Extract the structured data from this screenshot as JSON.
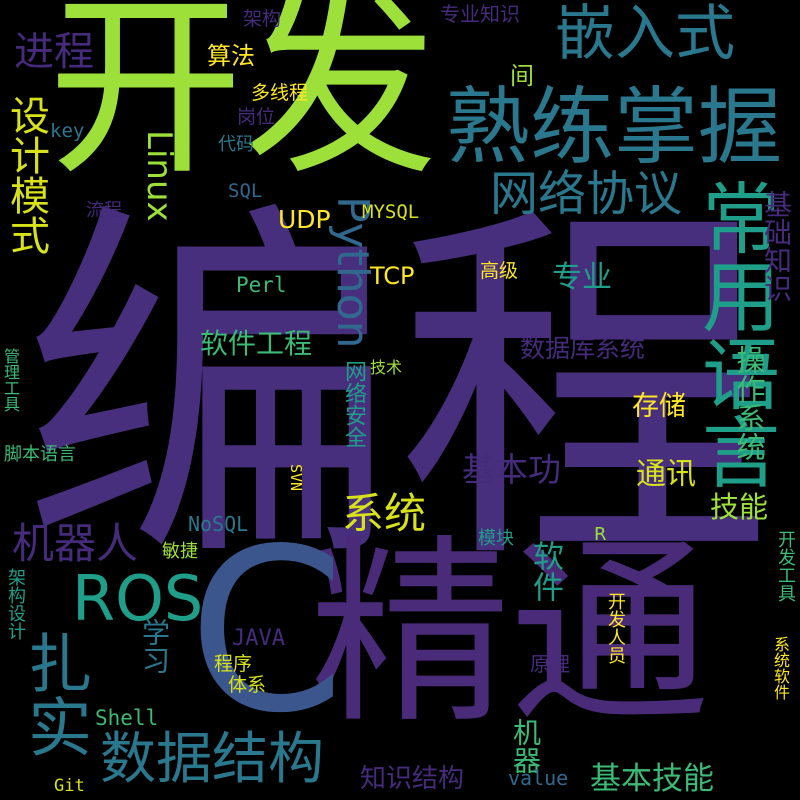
{
  "colors": {
    "background": "#000000",
    "palette": [
      "#4a2b7a",
      "#472f7d",
      "#3a568c",
      "#2a788e",
      "#1f9e89",
      "#3bbb75",
      "#74d055",
      "#9ee03a",
      "#d8e219",
      "#fde725",
      "#462b7c",
      "#31688e"
    ]
  },
  "words": {
    "biancheng": "编程",
    "kaifa": "开发",
    "jingtong": "精通",
    "c": "C",
    "shulianzhangwo": "熟练掌握",
    "qianrushi": "嵌入式",
    "changyongyuyan": "常用语言",
    "wangluoxieyi": "网络协议",
    "shujujiegou": "数据结构",
    "ros": "ROS",
    "zhashi": "扎实",
    "shejimoshi": "设计模式",
    "jinhceng": "进程",
    "python": "Python",
    "linux": "Linux",
    "xitong": "系统",
    "jiqiren": "机器人",
    "ruanjiangongcheng": "软件工程",
    "shujukuxitong": "数据库系统",
    "jibengong": "基本功",
    "jibenjineng": "基本技能",
    "jichuzhishi": "基础知识",
    "caozuoxitong": "操作系统",
    "jineng": "技能",
    "tongxun": "通讯",
    "cunchu": "存储",
    "ruanjian": "软件",
    "jiqi": "机器",
    "xuexi": "学习",
    "zhishijiegou": "知识结构",
    "suanfa": "算法",
    "jian": "间",
    "zhuanyezhishi": "专业知识",
    "jiagou": "架构",
    "duoxiancheng": "多线程",
    "gangwei": "岗位",
    "daima": "代码",
    "sql": "SQL",
    "mysql": "MYSQL",
    "udp": "UDP",
    "tcp": "TCP",
    "perl": "Perl",
    "gaoji": "高级",
    "zhuanye": "专业",
    "jishu": "技术",
    "wangluoanquan": "网络安全",
    "svn": "SVN",
    "nosql": "NoSQL",
    "minjie": "敏捷",
    "mokuai": "模块",
    "r": "R",
    "java": "JAVA",
    "chengxu": "程序",
    "tixi": "体系",
    "yuanli": "原理",
    "shell": "Shell",
    "value": "value",
    "git": "Git",
    "key": "key",
    "liucheng": "流程",
    "guanligongju": "管理工具",
    "jiaobenyuyan": "脚本语言",
    "jiagousheji": "架构设计",
    "kaifarenyuan": "开发人员",
    "kaifagongju": "开发工具",
    "xitongruanjian": "系统软件"
  }
}
